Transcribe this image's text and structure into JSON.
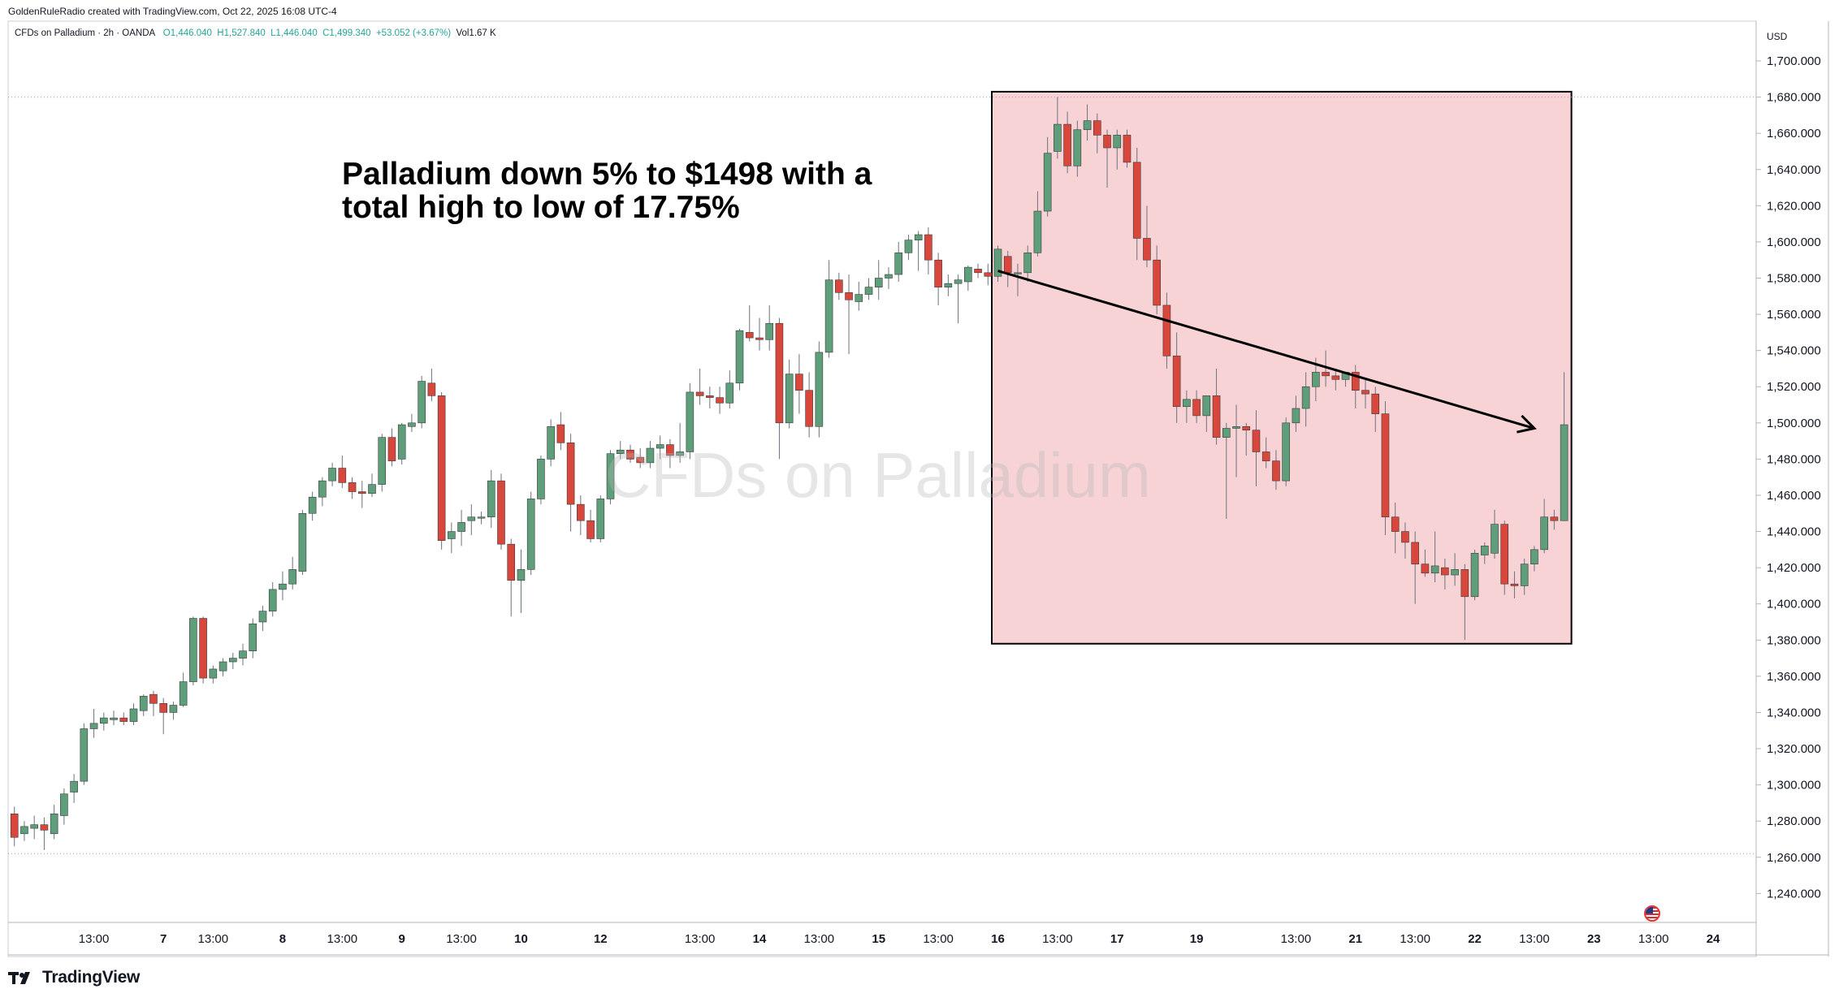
{
  "header": {
    "top_line": "GoldenRuleRadio created with TradingView.com, Oct 22, 2025 16:08 UTC-4",
    "symbol_line": "CFDs on Palladium · 2h · OANDA",
    "open": "O1,446.040",
    "high": "H1,527.840",
    "low": "L1,446.040",
    "close": "C1,499.340",
    "change": "+53.052 (+3.67%)",
    "volume": "Vol1.67 K"
  },
  "annotation": {
    "headline_line1": "Palladium down 5% to $1498 with a",
    "headline_line2": "total high to low of 17.75%"
  },
  "watermark": "CFDs on Palladium",
  "brand": "TradingView",
  "chart_data": {
    "type": "candlestick",
    "currency": "USD",
    "y_axis_ticks": [
      1240,
      1260,
      1280,
      1300,
      1320,
      1340,
      1360,
      1380,
      1400,
      1420,
      1440,
      1460,
      1480,
      1500,
      1520,
      1540,
      1560,
      1580,
      1600,
      1620,
      1640,
      1660,
      1680,
      1700
    ],
    "y_axis_labels": [
      "1,240.000",
      "1,260.000",
      "1,280.000",
      "1,300.000",
      "1,320.000",
      "1,340.000",
      "1,360.000",
      "1,380.000",
      "1,400.000",
      "1,420.000",
      "1,440.000",
      "1,460.000",
      "1,480.000",
      "1,500.000",
      "1,520.000",
      "1,540.000",
      "1,560.000",
      "1,580.000",
      "1,600.000",
      "1,620.000",
      "1,640.000",
      "1,660.000",
      "1,680.000",
      "1,700.000"
    ],
    "ylim": [
      1224,
      1722
    ],
    "x_axis_labels": [
      "13:00",
      "7",
      "13:00",
      "8",
      "13:00",
      "9",
      "13:00",
      "10",
      "12",
      "13:00",
      "14",
      "13:00",
      "15",
      "13:00",
      "16",
      "13:00",
      "17",
      "19",
      "13:00",
      "21",
      "13:00",
      "22",
      "13:00",
      "23",
      "13:00",
      "24"
    ],
    "x_axis_label_bars": [
      9,
      16,
      21,
      28,
      34,
      40,
      46,
      52,
      60,
      70,
      76,
      82,
      88,
      94,
      100,
      106,
      112,
      120,
      130,
      136,
      142,
      148,
      154,
      160,
      166,
      172
    ],
    "reference_lines": [
      1680,
      1262
    ],
    "highlight_box": {
      "bar_from": 100,
      "bar_to": 157,
      "y_from": 1378,
      "y_to": 1683
    },
    "trend_arrow": {
      "from_bar": 100,
      "from_y": 1584,
      "to_bar": 154,
      "to_y": 1497
    },
    "candles": [
      [
        1,
        1284,
        1288,
        1266,
        1271
      ],
      [
        2,
        1273,
        1280,
        1269,
        1277
      ],
      [
        3,
        1276,
        1283,
        1270,
        1278
      ],
      [
        4,
        1278,
        1282,
        1264,
        1275
      ],
      [
        5,
        1273,
        1289,
        1270,
        1284
      ],
      [
        6,
        1283,
        1298,
        1278,
        1295
      ],
      [
        7,
        1296,
        1306,
        1290,
        1302
      ],
      [
        8,
        1302,
        1334,
        1300,
        1331
      ],
      [
        9,
        1331,
        1342,
        1326,
        1334
      ],
      [
        10,
        1334,
        1340,
        1330,
        1337
      ],
      [
        11,
        1336,
        1341,
        1333,
        1337
      ],
      [
        12,
        1337,
        1340,
        1333,
        1335
      ],
      [
        13,
        1335,
        1345,
        1333,
        1342
      ],
      [
        14,
        1341,
        1350,
        1338,
        1349
      ],
      [
        15,
        1350,
        1352,
        1338,
        1345
      ],
      [
        16,
        1345,
        1348,
        1328,
        1340
      ],
      [
        17,
        1340,
        1346,
        1336,
        1344
      ],
      [
        18,
        1344,
        1362,
        1343,
        1357
      ],
      [
        19,
        1357,
        1393,
        1355,
        1392
      ],
      [
        20,
        1392,
        1393,
        1356,
        1359
      ],
      [
        21,
        1359,
        1366,
        1356,
        1364
      ],
      [
        22,
        1363,
        1370,
        1360,
        1368
      ],
      [
        23,
        1368,
        1373,
        1364,
        1370
      ],
      [
        24,
        1370,
        1378,
        1366,
        1374
      ],
      [
        25,
        1374,
        1392,
        1370,
        1389
      ],
      [
        26,
        1390,
        1399,
        1385,
        1396
      ],
      [
        27,
        1396,
        1412,
        1393,
        1408
      ],
      [
        28,
        1408,
        1418,
        1402,
        1411
      ],
      [
        29,
        1411,
        1426,
        1408,
        1419
      ],
      [
        30,
        1418,
        1452,
        1416,
        1450
      ],
      [
        31,
        1450,
        1462,
        1446,
        1459
      ],
      [
        32,
        1459,
        1470,
        1454,
        1468
      ],
      [
        33,
        1468,
        1478,
        1465,
        1475
      ],
      [
        34,
        1475,
        1482,
        1464,
        1467
      ],
      [
        35,
        1467,
        1470,
        1458,
        1462
      ],
      [
        36,
        1462,
        1468,
        1453,
        1461
      ],
      [
        37,
        1461,
        1472,
        1459,
        1466
      ],
      [
        38,
        1466,
        1494,
        1462,
        1492
      ],
      [
        39,
        1492,
        1497,
        1476,
        1479
      ],
      [
        40,
        1480,
        1500,
        1477,
        1499
      ],
      [
        41,
        1498,
        1505,
        1495,
        1500
      ],
      [
        42,
        1500,
        1526,
        1497,
        1523
      ],
      [
        43,
        1522,
        1530,
        1512,
        1515
      ],
      [
        44,
        1515,
        1517,
        1430,
        1435
      ],
      [
        45,
        1436,
        1445,
        1428,
        1440
      ],
      [
        46,
        1440,
        1452,
        1432,
        1445
      ],
      [
        47,
        1446,
        1455,
        1438,
        1448
      ],
      [
        48,
        1448,
        1451,
        1444,
        1448
      ],
      [
        49,
        1448,
        1474,
        1442,
        1468
      ],
      [
        50,
        1468,
        1472,
        1430,
        1433
      ],
      [
        51,
        1433,
        1436,
        1393,
        1413
      ],
      [
        52,
        1413,
        1430,
        1395,
        1419
      ],
      [
        53,
        1419,
        1462,
        1416,
        1458
      ],
      [
        54,
        1458,
        1482,
        1455,
        1480
      ],
      [
        55,
        1480,
        1502,
        1476,
        1498
      ],
      [
        56,
        1499,
        1506,
        1485,
        1489
      ],
      [
        57,
        1489,
        1494,
        1440,
        1455
      ],
      [
        58,
        1455,
        1460,
        1438,
        1446
      ],
      [
        59,
        1446,
        1452,
        1434,
        1436
      ],
      [
        60,
        1436,
        1460,
        1434,
        1458
      ],
      [
        61,
        1458,
        1485,
        1455,
        1483
      ],
      [
        62,
        1483,
        1490,
        1480,
        1485
      ],
      [
        63,
        1485,
        1488,
        1478,
        1480
      ],
      [
        64,
        1481,
        1486,
        1475,
        1478
      ],
      [
        65,
        1478,
        1490,
        1475,
        1486
      ],
      [
        66,
        1486,
        1493,
        1480,
        1488
      ],
      [
        67,
        1488,
        1491,
        1475,
        1482
      ],
      [
        68,
        1482,
        1500,
        1478,
        1484
      ],
      [
        69,
        1484,
        1522,
        1480,
        1517
      ],
      [
        70,
        1517,
        1530,
        1510,
        1515
      ],
      [
        71,
        1515,
        1520,
        1508,
        1514
      ],
      [
        72,
        1514,
        1520,
        1505,
        1511
      ],
      [
        73,
        1511,
        1529,
        1508,
        1522
      ],
      [
        74,
        1522,
        1552,
        1518,
        1551
      ],
      [
        75,
        1550,
        1565,
        1545,
        1547
      ],
      [
        76,
        1547,
        1558,
        1540,
        1546
      ],
      [
        77,
        1546,
        1565,
        1540,
        1555
      ],
      [
        78,
        1555,
        1558,
        1480,
        1500
      ],
      [
        79,
        1500,
        1535,
        1497,
        1527
      ],
      [
        80,
        1527,
        1538,
        1505,
        1518
      ],
      [
        81,
        1518,
        1528,
        1492,
        1498
      ],
      [
        82,
        1498,
        1545,
        1492,
        1539
      ],
      [
        83,
        1539,
        1590,
        1536,
        1579
      ],
      [
        84,
        1579,
        1583,
        1568,
        1572
      ],
      [
        85,
        1572,
        1582,
        1538,
        1568
      ],
      [
        86,
        1567,
        1578,
        1562,
        1571
      ],
      [
        87,
        1571,
        1580,
        1568,
        1575
      ],
      [
        88,
        1575,
        1590,
        1568,
        1580
      ],
      [
        89,
        1580,
        1586,
        1574,
        1582
      ],
      [
        90,
        1582,
        1600,
        1578,
        1594
      ],
      [
        91,
        1594,
        1604,
        1590,
        1601
      ],
      [
        92,
        1601,
        1606,
        1584,
        1604
      ],
      [
        93,
        1604,
        1608,
        1582,
        1590
      ],
      [
        94,
        1590,
        1594,
        1565,
        1575
      ],
      [
        95,
        1575,
        1582,
        1570,
        1577
      ],
      [
        96,
        1577,
        1582,
        1555,
        1579
      ],
      [
        97,
        1578,
        1587,
        1573,
        1586
      ],
      [
        98,
        1585,
        1588,
        1580,
        1583
      ],
      [
        99,
        1583,
        1588,
        1576,
        1581
      ],
      [
        100,
        1581,
        1598,
        1578,
        1596
      ],
      [
        101,
        1592,
        1595,
        1575,
        1583
      ],
      [
        102,
        1583,
        1588,
        1570,
        1583
      ],
      [
        103,
        1583,
        1598,
        1578,
        1594
      ],
      [
        104,
        1594,
        1628,
        1592,
        1617
      ],
      [
        105,
        1617,
        1658,
        1614,
        1649
      ],
      [
        106,
        1650,
        1680,
        1646,
        1665
      ],
      [
        107,
        1665,
        1672,
        1638,
        1642
      ],
      [
        108,
        1642,
        1667,
        1636,
        1662
      ],
      [
        109,
        1662,
        1676,
        1656,
        1667
      ],
      [
        110,
        1667,
        1671,
        1649,
        1659
      ],
      [
        111,
        1659,
        1662,
        1630,
        1652
      ],
      [
        112,
        1652,
        1662,
        1640,
        1659
      ],
      [
        113,
        1659,
        1662,
        1641,
        1644
      ],
      [
        114,
        1644,
        1652,
        1590,
        1602
      ],
      [
        115,
        1602,
        1620,
        1586,
        1590
      ],
      [
        116,
        1590,
        1598,
        1560,
        1565
      ],
      [
        117,
        1565,
        1572,
        1530,
        1537
      ],
      [
        118,
        1537,
        1550,
        1500,
        1509
      ],
      [
        119,
        1509,
        1518,
        1500,
        1513
      ],
      [
        120,
        1513,
        1518,
        1500,
        1504
      ],
      [
        121,
        1504,
        1515,
        1495,
        1515
      ],
      [
        122,
        1515,
        1530,
        1488,
        1492
      ],
      [
        123,
        1492,
        1500,
        1447,
        1497
      ],
      [
        124,
        1497,
        1510,
        1470,
        1498
      ],
      [
        125,
        1498,
        1500,
        1482,
        1496
      ],
      [
        126,
        1496,
        1507,
        1465,
        1484
      ],
      [
        127,
        1484,
        1492,
        1475,
        1479
      ],
      [
        128,
        1479,
        1485,
        1463,
        1468
      ],
      [
        129,
        1468,
        1503,
        1465,
        1500
      ],
      [
        130,
        1500,
        1515,
        1495,
        1508
      ],
      [
        131,
        1508,
        1528,
        1498,
        1520
      ],
      [
        132,
        1520,
        1536,
        1512,
        1528
      ],
      [
        133,
        1528,
        1540,
        1520,
        1526
      ],
      [
        134,
        1526,
        1530,
        1518,
        1524
      ],
      [
        135,
        1524,
        1528,
        1520,
        1528
      ],
      [
        136,
        1528,
        1532,
        1508,
        1518
      ],
      [
        137,
        1518,
        1525,
        1508,
        1516
      ],
      [
        138,
        1516,
        1520,
        1495,
        1505
      ],
      [
        139,
        1505,
        1512,
        1438,
        1448
      ],
      [
        140,
        1448,
        1456,
        1428,
        1440
      ],
      [
        141,
        1440,
        1445,
        1425,
        1434
      ],
      [
        142,
        1434,
        1440,
        1400,
        1422
      ],
      [
        143,
        1422,
        1430,
        1415,
        1417
      ],
      [
        144,
        1417,
        1440,
        1412,
        1421
      ],
      [
        145,
        1420,
        1425,
        1408,
        1416
      ],
      [
        146,
        1416,
        1428,
        1410,
        1419
      ],
      [
        147,
        1419,
        1422,
        1380,
        1404
      ],
      [
        148,
        1404,
        1430,
        1402,
        1428
      ],
      [
        149,
        1427,
        1434,
        1422,
        1432
      ],
      [
        150,
        1428,
        1452,
        1425,
        1444
      ],
      [
        151,
        1444,
        1446,
        1405,
        1411
      ],
      [
        152,
        1411,
        1418,
        1403,
        1410
      ],
      [
        153,
        1410,
        1425,
        1405,
        1422
      ],
      [
        154,
        1422,
        1432,
        1418,
        1430
      ],
      [
        155,
        1430,
        1458,
        1428,
        1448
      ],
      [
        156,
        1448,
        1452,
        1441,
        1446
      ],
      [
        157,
        1446,
        1528,
        1446,
        1499
      ]
    ]
  }
}
